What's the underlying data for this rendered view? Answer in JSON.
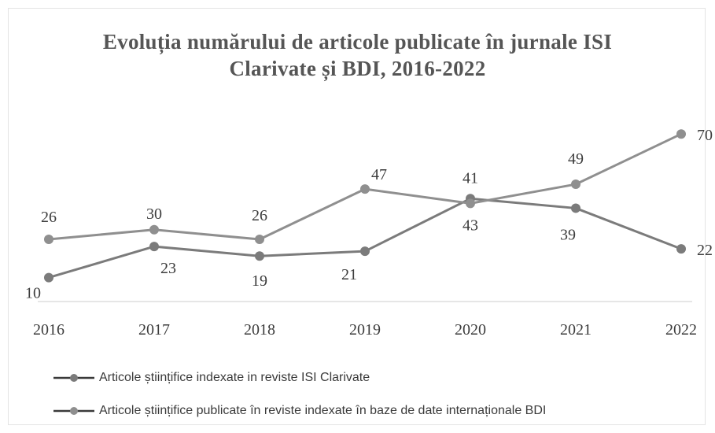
{
  "chart_data": {
    "type": "line",
    "title_lines": [
      "Evoluția numărului de articole publicate în jurnale ISI",
      "Clarivate și BDI, 2016-2022"
    ],
    "categories": [
      "2016",
      "2017",
      "2018",
      "2019",
      "2020",
      "2021",
      "2022"
    ],
    "series": [
      {
        "name": "Articole științifice indexate in reviste ISI Clarivate",
        "values": [
          10,
          23,
          19,
          21,
          43,
          39,
          22
        ],
        "color": "#7b7b7b"
      },
      {
        "name": "Articole științifice publicate în reviste indexate în baze de date internaționale BDI",
        "values": [
          26,
          30,
          26,
          47,
          41,
          49,
          70
        ],
        "color": "#8f8f8f"
      }
    ],
    "ylim": [
      0,
      80
    ],
    "grid": false,
    "legend_position": "bottom"
  }
}
